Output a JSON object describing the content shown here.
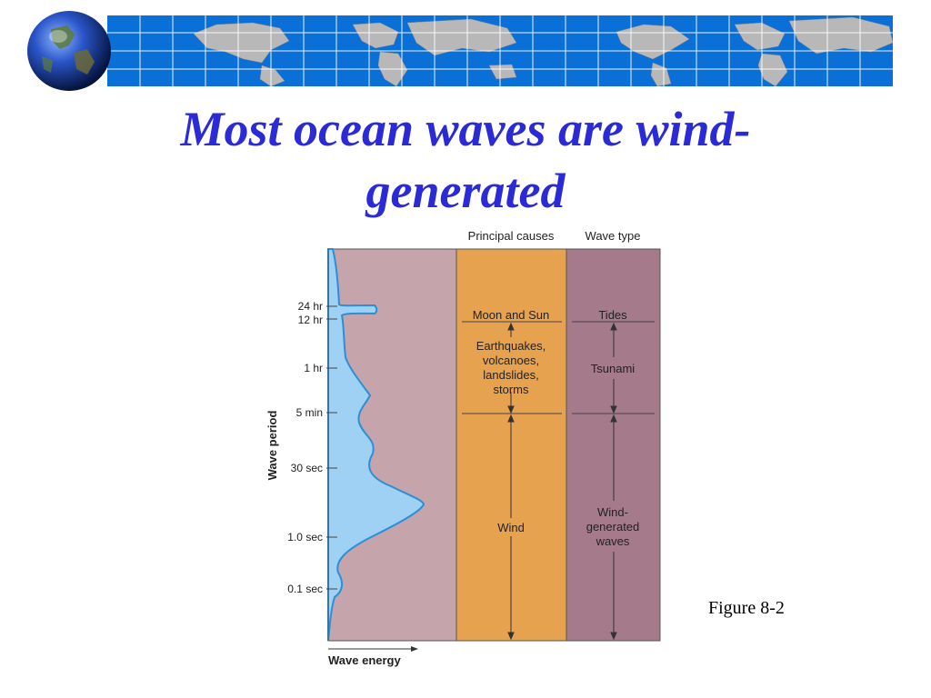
{
  "slide": {
    "title_line1": "Most ocean waves are wind-",
    "title_line2": "generated",
    "caption": "Figure 8-2"
  },
  "decor": {
    "banner_icon": "world-map-grid-banner",
    "globe_icon": "earth-globe-icon"
  },
  "diagram": {
    "header_causes": "Principal causes",
    "header_wavetype": "Wave type",
    "y_axis_label": "Wave period",
    "x_axis_label": "Wave energy",
    "period_ticks": [
      "24 hr",
      "12 hr",
      "1 hr",
      "5 min",
      "30 sec",
      "1.0 sec",
      "0.1 sec"
    ],
    "causes": {
      "moon_sun": "Moon and Sun",
      "geo_line1": "Earthquakes,",
      "geo_line2": "volcanoes,",
      "geo_line3": "landslides,",
      "geo_line4": "storms",
      "wind": "Wind"
    },
    "wave_types": {
      "tides": "Tides",
      "tsunami": "Tsunami",
      "wind_line1": "Wind-",
      "wind_line2": "generated",
      "wind_line3": "waves"
    },
    "colors": {
      "energy_panel": "#c5a4ac",
      "energy_fill": "#9fd1f5",
      "energy_line": "#2a8fd8",
      "causes_panel": "#e7a24f",
      "wavetype_panel": "#a57a8a"
    }
  }
}
